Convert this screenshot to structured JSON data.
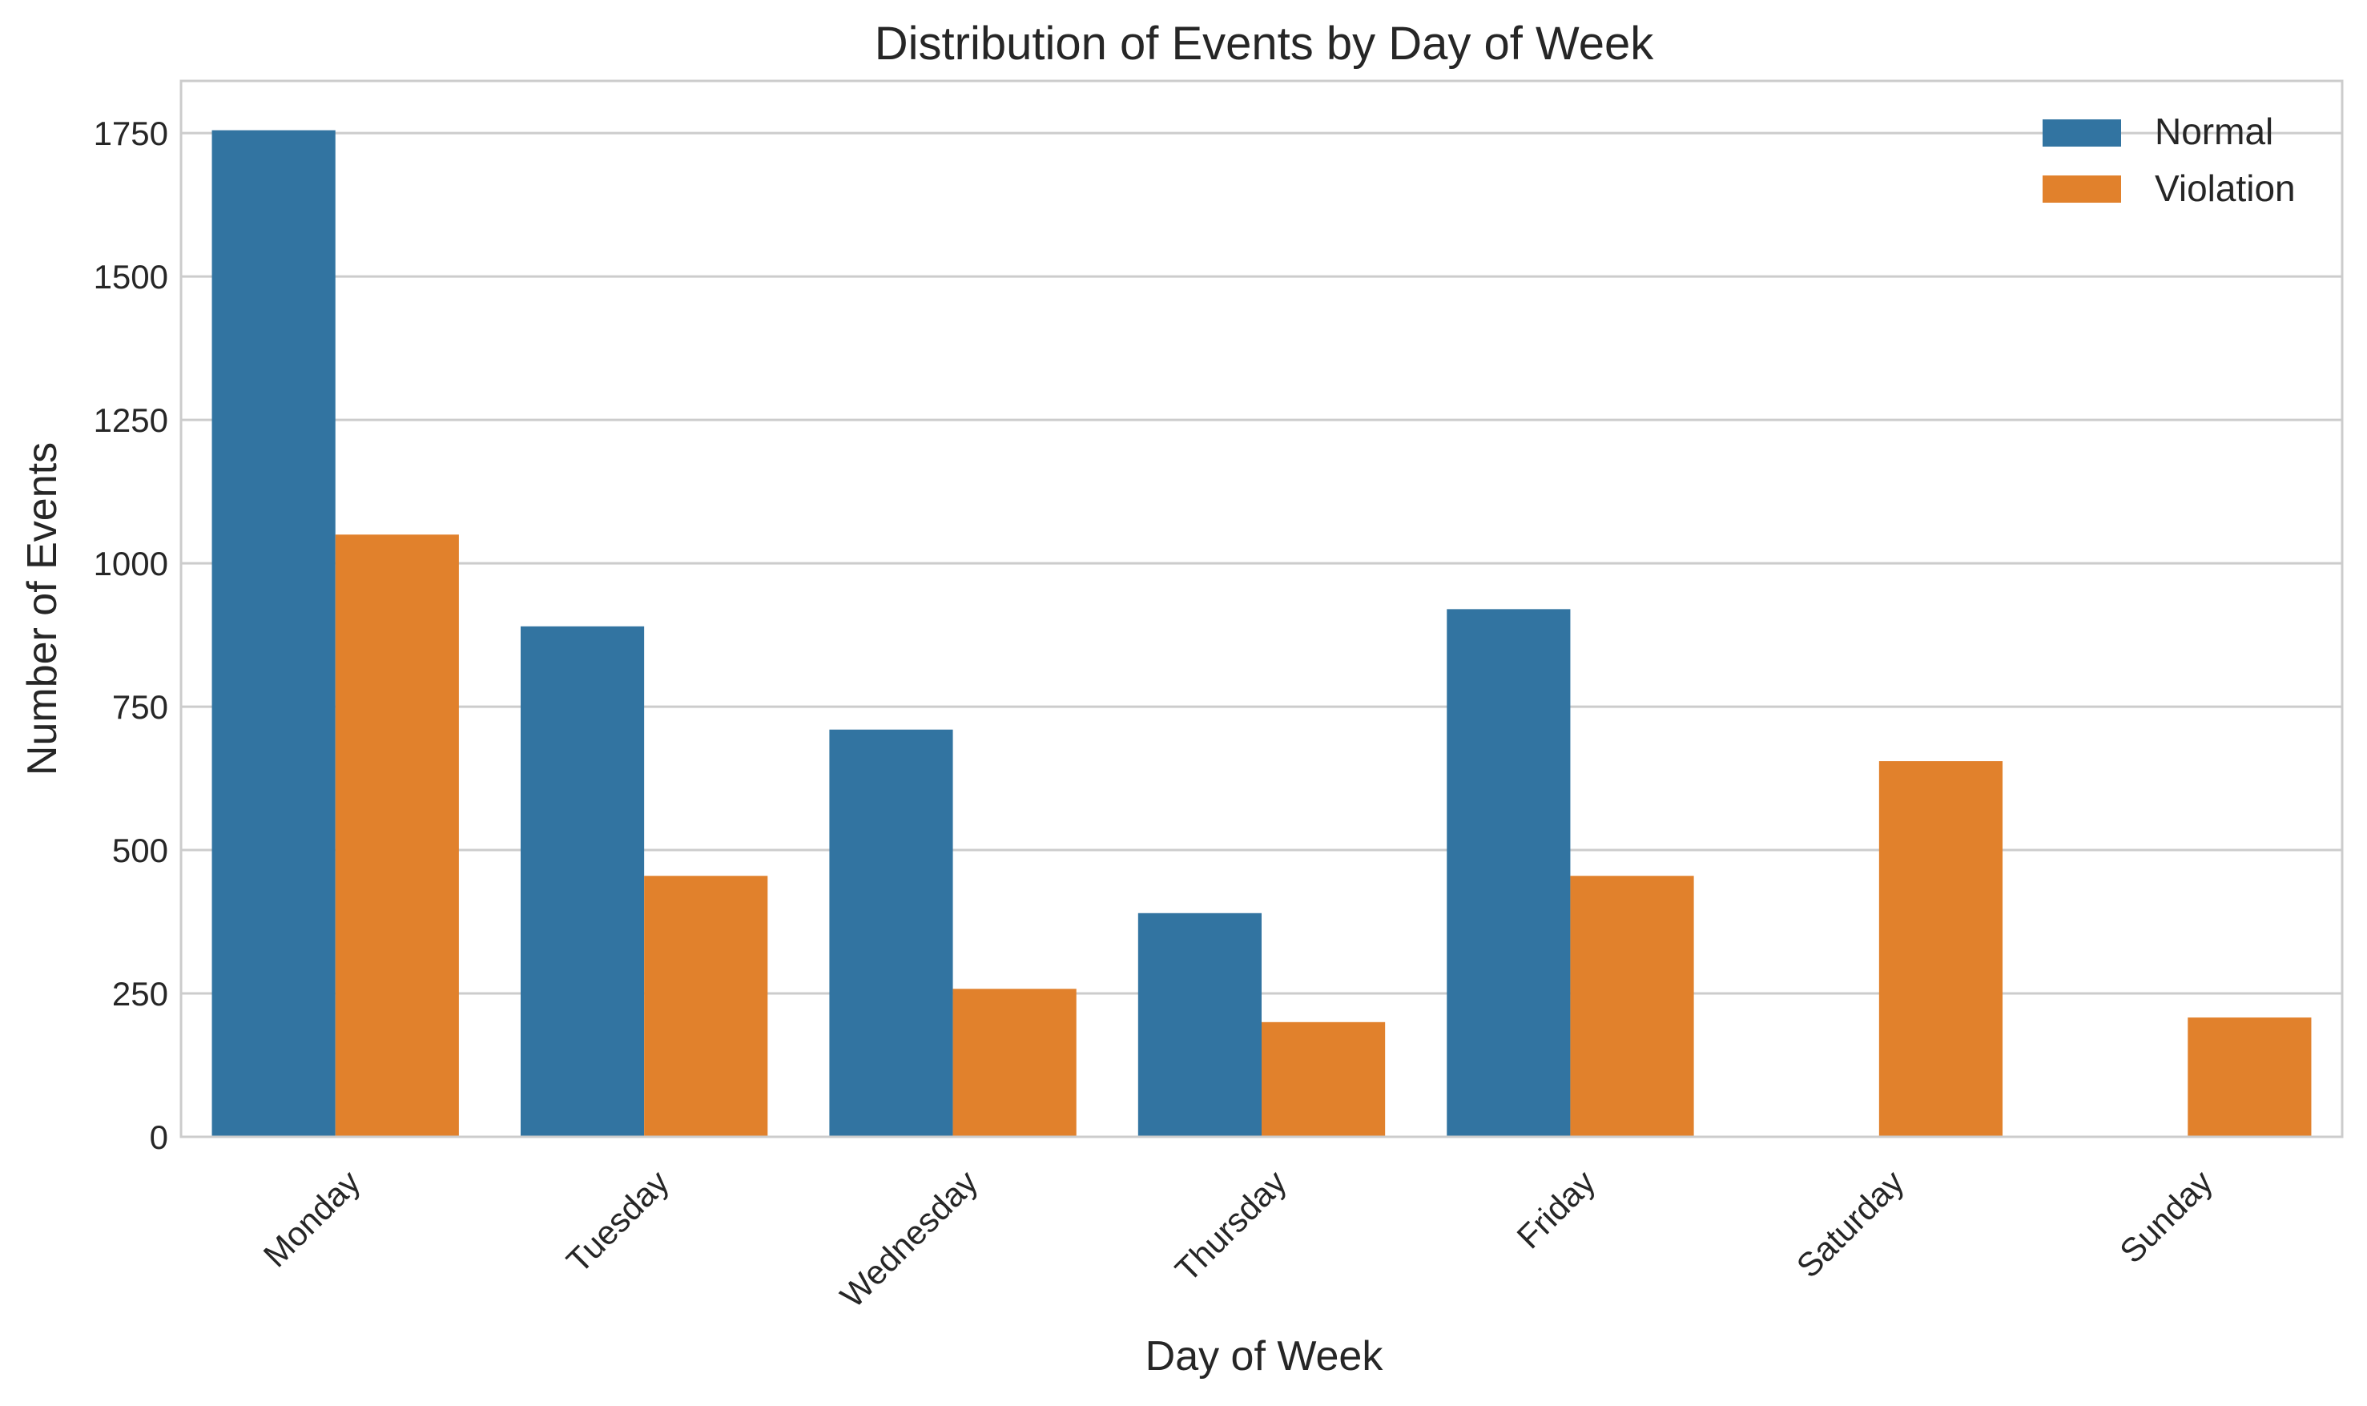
{
  "chart_data": {
    "type": "bar",
    "title": "Distribution of Events by Day of Week",
    "xlabel": "Day of Week",
    "ylabel": "Number of Events",
    "categories": [
      "Monday",
      "Tuesday",
      "Wednesday",
      "Thursday",
      "Friday",
      "Saturday",
      "Sunday"
    ],
    "series": [
      {
        "name": "Normal",
        "color": "#3274a1",
        "values": [
          1755,
          890,
          710,
          390,
          920,
          0,
          0
        ]
      },
      {
        "name": "Violation",
        "color": "#e1812c",
        "values": [
          1050,
          455,
          258,
          200,
          455,
          655,
          208
        ]
      }
    ],
    "ylim": [
      0,
      1841
    ],
    "yticks": [
      0,
      250,
      500,
      750,
      1000,
      1250,
      1500,
      1750
    ],
    "grid": true,
    "legend_position": "top-right"
  }
}
